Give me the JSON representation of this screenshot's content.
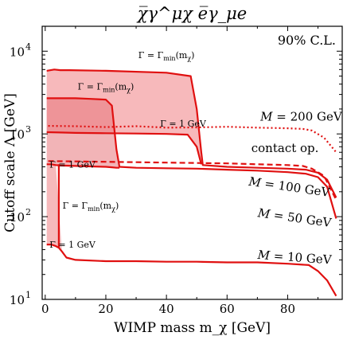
{
  "chart_data": {
    "type": "line",
    "title": "χ̅γ^μχ e̅γ_μe",
    "xlabel": "WIMP mass m_χ [GeV]",
    "ylabel": "Cutoff scale Λ [GeV]",
    "xlim": [
      -1,
      98
    ],
    "ylim": [
      10,
      20000
    ],
    "y_scale": "log",
    "x_ticks": [
      0,
      20,
      40,
      60,
      80
    ],
    "y_ticks": [
      {
        "value": 10,
        "base": "10",
        "exp": "1"
      },
      {
        "value": 100,
        "base": "10",
        "exp": "2"
      },
      {
        "value": 1000,
        "base": "10",
        "exp": "3"
      },
      {
        "value": 10000,
        "base": "10",
        "exp": "4"
      }
    ],
    "confidence_label": "90% C.L.",
    "grid": false,
    "series": [
      {
        "name": "M = 200 GeV",
        "style": "dotted",
        "color": "#e01010",
        "x": [
          1,
          10,
          20,
          30,
          40,
          50,
          60,
          70,
          80,
          85,
          88,
          92,
          96
        ],
        "y": [
          1250,
          1240,
          1210,
          1240,
          1190,
          1200,
          1220,
          1190,
          1170,
          1150,
          1100,
          900,
          600
        ]
      },
      {
        "name": "contact op.",
        "style": "dashed",
        "color": "#e01010",
        "x": [
          1,
          10,
          20,
          30,
          40,
          50,
          60,
          70,
          80,
          85,
          88,
          92,
          96
        ],
        "y": [
          470,
          465,
          460,
          455,
          450,
          445,
          440,
          430,
          420,
          410,
          380,
          310,
          160
        ]
      },
      {
        "name": "M = 100 GeV",
        "style": "solid",
        "color": "#e01010",
        "x": [
          0.5,
          3,
          5,
          8,
          20,
          40,
          48,
          50,
          51.5,
          52,
          60,
          70,
          80,
          86,
          90,
          93,
          96
        ],
        "y": [
          5800,
          6000,
          5900,
          5900,
          5800,
          5500,
          5000,
          2000,
          600,
          420,
          400,
          390,
          380,
          370,
          340,
          280,
          170
        ]
      },
      {
        "name": "M = 50 GeV",
        "style": "solid",
        "color": "#e01010",
        "x": [
          0.5,
          2,
          5,
          10,
          15,
          20,
          22,
          23.5,
          24.5,
          30,
          40,
          50,
          60,
          70,
          80,
          86,
          90,
          93,
          96
        ],
        "y": [
          2700,
          2700,
          2700,
          2700,
          2650,
          2600,
          2200,
          650,
          400,
          390,
          385,
          380,
          370,
          360,
          345,
          330,
          300,
          230,
          95
        ]
      },
      {
        "name": "M = 10 GeV",
        "style": "solid",
        "color": "#e01010",
        "x": [
          0.5,
          2,
          3.5,
          4.5,
          5.5,
          7,
          10,
          20,
          30,
          40,
          50,
          60,
          70,
          80,
          87,
          90,
          93,
          96
        ],
        "y": [
          46,
          46,
          44,
          42,
          38,
          32,
          30,
          29,
          29,
          28.5,
          28.5,
          28,
          28,
          27,
          26,
          22,
          17,
          11
        ]
      }
    ],
    "lower_curves": [
      {
        "name": "Γ = 1 GeV (M = 100 GeV)",
        "style": "solid",
        "color": "#e01010",
        "x": [
          0.5,
          5,
          10,
          20,
          30,
          40,
          47,
          50,
          51.5
        ],
        "y": [
          1050,
          1040,
          1030,
          1020,
          1010,
          1000,
          980,
          700,
          430
        ]
      },
      {
        "name": "Γ = 1 GeV (M = 50 GeV)",
        "style": "solid",
        "color": "#e01010",
        "x": [
          0.5,
          2,
          3.5,
          5,
          10,
          15,
          20,
          22,
          23.5,
          24.5
        ],
        "y": [
          430,
          430,
          420,
          415,
          410,
          405,
          400,
          395,
          390,
          390
        ]
      }
    ],
    "shaded_regions": [
      {
        "name": "M = 100 GeV band",
        "color": "#f4a2a4",
        "opacity": 0.75
      },
      {
        "name": "M = 50 GeV band",
        "color": "#e8777c",
        "opacity": 0.55
      },
      {
        "name": "M = 10 GeV band",
        "color": "#f08a8e",
        "opacity": 0.6
      }
    ],
    "annotations": [
      {
        "text": "Γ = Γmin(mχ)",
        "base": "Γ = Γ",
        "sub": "min",
        "tail": "(m",
        "sub2": "χ",
        "end": ")",
        "x": 40,
        "y": 8200
      },
      {
        "text": "Γ = Γmin(mχ)",
        "base": "Γ = Γ",
        "sub": "min",
        "tail": "(m",
        "sub2": "χ",
        "end": ")",
        "x": 20,
        "y": 3450
      },
      {
        "text": "Γ = 1 GeV",
        "x": 45.5,
        "y": 1230
      },
      {
        "text": "Γ = 1 GeV",
        "x": 9,
        "y": 390
      },
      {
        "text": "Γ = Γmin(mχ)",
        "base": "Γ = Γ",
        "sub": "min",
        "tail": "(m",
        "sub2": "χ",
        "end": ")",
        "x": 15,
        "y": 125
      },
      {
        "text": "Γ = 1 GeV",
        "x": 9,
        "y": 42
      }
    ],
    "curve_labels": [
      {
        "text": "M = 200 GeV",
        "x": 71,
        "y": 1450,
        "italic_var": "M",
        "rest": " = 200 GeV"
      },
      {
        "text": "contact op.",
        "x": 68,
        "y": 600,
        "italic_var": "",
        "rest": "contact op."
      },
      {
        "text": "M = 100 GeV",
        "x": 67,
        "y": 240,
        "italic_var": "M",
        "rest": " = 100 GeV",
        "rotate": 8
      },
      {
        "text": "M = 50 GeV",
        "x": 70,
        "y": 100,
        "italic_var": "M",
        "rest": " = 50 GeV",
        "rotate": 8
      },
      {
        "text": "M = 10 GeV",
        "x": 70,
        "y": 31,
        "italic_var": "M",
        "rest": " = 10 GeV",
        "rotate": 4
      }
    ]
  }
}
